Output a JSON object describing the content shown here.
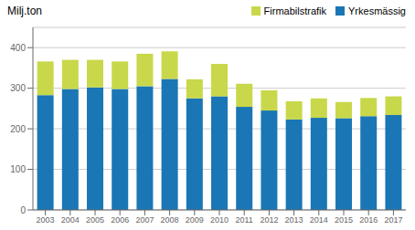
{
  "chart_data": {
    "type": "bar",
    "stacked": true,
    "ylabel": "Milj.ton",
    "categories": [
      "2003",
      "2004",
      "2005",
      "2006",
      "2007",
      "2008",
      "2009",
      "2010",
      "2011",
      "2012",
      "2013",
      "2014",
      "2015",
      "2016",
      "2017"
    ],
    "series": [
      {
        "name": "Yrkesmässig",
        "color": "#1a76b5",
        "values": [
          283,
          298,
          302,
          298,
          305,
          323,
          275,
          280,
          254,
          245,
          223,
          227,
          226,
          231,
          234
        ]
      },
      {
        "name": "Firmabilstrafik",
        "color": "#c8d84a",
        "values": [
          83,
          72,
          68,
          68,
          80,
          68,
          47,
          80,
          57,
          50,
          45,
          48,
          40,
          45,
          46
        ]
      }
    ],
    "ylim": [
      0,
      450
    ],
    "yticks": [
      0,
      100,
      200,
      300,
      400
    ],
    "grid": true,
    "legend": "upper right"
  }
}
